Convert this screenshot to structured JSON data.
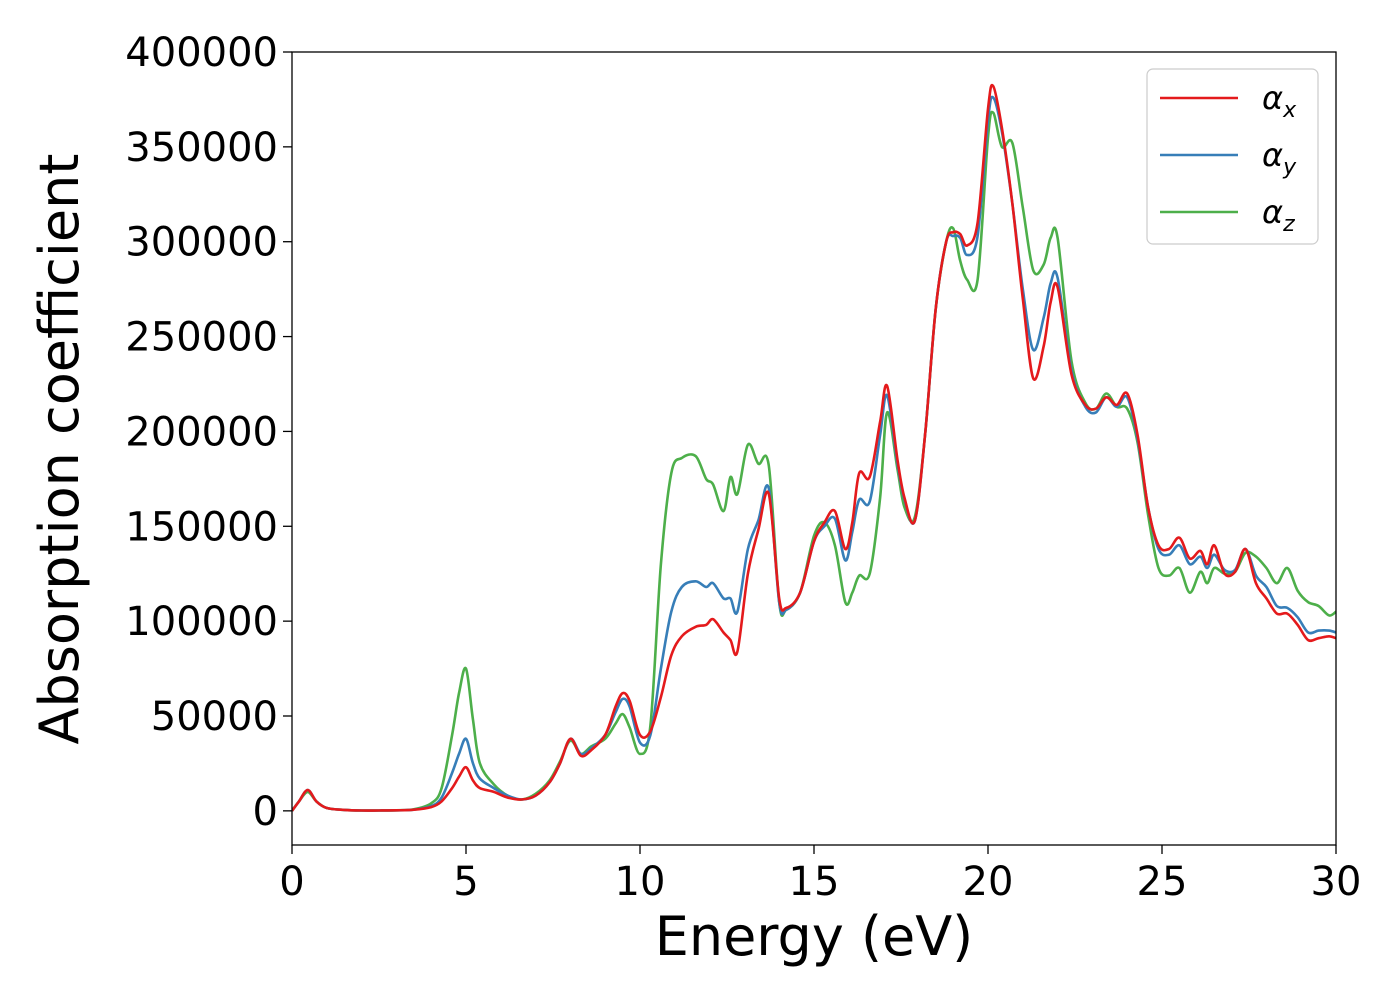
{
  "chart_data": {
    "type": "line",
    "xlabel": "Energy (eV)",
    "ylabel": "Absorption coefficient",
    "xlim": [
      0,
      30
    ],
    "ylim": [
      -18000,
      400000
    ],
    "xticks": [
      0,
      5,
      10,
      15,
      20,
      25,
      30
    ],
    "yticks": [
      0,
      50000,
      100000,
      150000,
      200000,
      250000,
      300000,
      350000,
      400000
    ],
    "grid": false,
    "legend_position": "top-right",
    "series": [
      {
        "name": "αx",
        "symbol": "α",
        "subscript": "x",
        "color": "#e41a1c",
        "x": [
          0,
          0.2,
          0.45,
          0.7,
          1,
          1.5,
          2,
          2.5,
          3,
          3.5,
          4,
          4.3,
          4.6,
          4.8,
          5,
          5.2,
          5.4,
          5.8,
          6.2,
          6.6,
          7,
          7.4,
          7.7,
          8,
          8.3,
          8.6,
          9,
          9.3,
          9.5,
          9.7,
          10,
          10.3,
          10.6,
          10.9,
          11.2,
          11.6,
          11.9,
          12.1,
          12.4,
          12.6,
          12.8,
          13.1,
          13.4,
          13.7,
          14,
          14.2,
          14.6,
          15,
          15.3,
          15.6,
          15.9,
          16.1,
          16.3,
          16.6,
          16.9,
          17.1,
          17.4,
          17.6,
          17.9,
          18.2,
          18.5,
          18.8,
          19,
          19.2,
          19.4,
          19.7,
          20,
          20.15,
          20.4,
          20.7,
          21,
          21.3,
          21.6,
          21.8,
          22,
          22.4,
          22.8,
          23.1,
          23.4,
          23.7,
          24,
          24.3,
          24.6,
          24.9,
          25.2,
          25.5,
          25.8,
          26.1,
          26.3,
          26.5,
          26.8,
          27.1,
          27.4,
          27.7,
          28,
          28.3,
          28.6,
          28.9,
          29.2,
          29.5,
          29.8,
          30
        ],
        "y": [
          0,
          5000,
          11000,
          5000,
          1500,
          500,
          200,
          200,
          300,
          600,
          2000,
          5000,
          12000,
          18000,
          23000,
          16000,
          12000,
          10000,
          7000,
          6000,
          8000,
          15000,
          25000,
          38000,
          29000,
          32000,
          40000,
          55000,
          62000,
          58000,
          40000,
          42000,
          60000,
          82000,
          92000,
          97000,
          98000,
          101000,
          94000,
          90000,
          84000,
          125000,
          148000,
          167000,
          112000,
          107000,
          115000,
          142000,
          152000,
          158000,
          138000,
          152000,
          178000,
          176000,
          205000,
          224000,
          185000,
          165000,
          153000,
          200000,
          265000,
          300000,
          305000,
          304000,
          298000,
          310000,
          370000,
          382000,
          360000,
          320000,
          270000,
          228000,
          245000,
          268000,
          276000,
          230000,
          214000,
          212000,
          218000,
          214000,
          220000,
          198000,
          160000,
          140000,
          138000,
          144000,
          133000,
          137000,
          130000,
          140000,
          125000,
          126000,
          138000,
          120000,
          112000,
          104000,
          104000,
          98000,
          90000,
          91000,
          92000,
          91000
        ]
      },
      {
        "name": "αy",
        "symbol": "α",
        "subscript": "y",
        "color": "#377eb8",
        "x": [
          0,
          0.2,
          0.45,
          0.7,
          1,
          1.5,
          2,
          2.5,
          3,
          3.5,
          4,
          4.3,
          4.6,
          4.8,
          5,
          5.2,
          5.4,
          5.8,
          6.2,
          6.6,
          7,
          7.4,
          7.7,
          8,
          8.3,
          8.6,
          9,
          9.3,
          9.5,
          9.7,
          10,
          10.3,
          10.6,
          10.9,
          11.2,
          11.6,
          11.9,
          12.1,
          12.4,
          12.6,
          12.8,
          13.1,
          13.4,
          13.7,
          14,
          14.2,
          14.6,
          15,
          15.3,
          15.6,
          15.9,
          16.1,
          16.3,
          16.6,
          16.9,
          17.1,
          17.4,
          17.6,
          17.9,
          18.2,
          18.5,
          18.8,
          19,
          19.2,
          19.4,
          19.7,
          20,
          20.15,
          20.4,
          20.7,
          21,
          21.3,
          21.6,
          21.8,
          22,
          22.4,
          22.8,
          23.1,
          23.4,
          23.7,
          24,
          24.3,
          24.6,
          24.9,
          25.2,
          25.5,
          25.8,
          26.1,
          26.3,
          26.5,
          26.8,
          27.1,
          27.4,
          27.7,
          28,
          28.3,
          28.6,
          28.9,
          29.2,
          29.5,
          29.8,
          30
        ],
        "y": [
          0,
          5000,
          11000,
          5000,
          1500,
          500,
          200,
          200,
          300,
          600,
          2500,
          7000,
          20000,
          30000,
          38000,
          25000,
          17000,
          12000,
          8000,
          6000,
          8000,
          15000,
          25000,
          38000,
          30000,
          33000,
          40000,
          52000,
          59000,
          55000,
          36000,
          40000,
          75000,
          105000,
          118000,
          121000,
          118000,
          120000,
          112000,
          112000,
          105000,
          138000,
          153000,
          170000,
          110000,
          106000,
          115000,
          142000,
          150000,
          154000,
          132000,
          147000,
          164000,
          163000,
          198000,
          219000,
          183000,
          164000,
          153000,
          200000,
          265000,
          300000,
          303000,
          302000,
          293000,
          303000,
          364000,
          376000,
          358000,
          320000,
          275000,
          243000,
          260000,
          278000,
          281000,
          232000,
          213000,
          210000,
          218000,
          213000,
          218000,
          196000,
          160000,
          138000,
          135000,
          140000,
          130000,
          134000,
          128000,
          135000,
          127000,
          127000,
          138000,
          124000,
          118000,
          108000,
          107000,
          102000,
          94000,
          95000,
          95000,
          94000
        ]
      },
      {
        "name": "αz",
        "symbol": "α",
        "subscript": "z",
        "color": "#4daf4a",
        "x": [
          0,
          0.2,
          0.45,
          0.7,
          1,
          1.5,
          2,
          2.5,
          3,
          3.5,
          4,
          4.3,
          4.6,
          4.8,
          5,
          5.2,
          5.4,
          5.8,
          6.2,
          6.6,
          7,
          7.4,
          7.7,
          8,
          8.3,
          8.6,
          9,
          9.3,
          9.5,
          9.7,
          10,
          10.3,
          10.6,
          10.9,
          11.2,
          11.6,
          11.9,
          12.1,
          12.4,
          12.6,
          12.8,
          13.1,
          13.4,
          13.7,
          14,
          14.2,
          14.6,
          15,
          15.3,
          15.6,
          15.9,
          16.1,
          16.3,
          16.6,
          16.9,
          17.1,
          17.4,
          17.6,
          17.9,
          18.2,
          18.5,
          18.8,
          19,
          19.2,
          19.4,
          19.7,
          20,
          20.15,
          20.4,
          20.7,
          21,
          21.3,
          21.6,
          21.8,
          22,
          22.4,
          22.8,
          23.1,
          23.4,
          23.7,
          24,
          24.3,
          24.6,
          24.9,
          25.2,
          25.5,
          25.8,
          26.1,
          26.3,
          26.5,
          26.8,
          27.1,
          27.4,
          27.7,
          28,
          28.3,
          28.6,
          28.9,
          29.2,
          29.5,
          29.8,
          30
        ],
        "y": [
          0,
          5000,
          10000,
          5000,
          1500,
          500,
          200,
          200,
          300,
          800,
          4000,
          12000,
          40000,
          62000,
          75000,
          48000,
          25000,
          14000,
          8000,
          6000,
          9000,
          16000,
          26000,
          37000,
          30000,
          34000,
          38000,
          46000,
          51000,
          44000,
          30000,
          45000,
          130000,
          178000,
          186000,
          187000,
          175000,
          172000,
          158000,
          176000,
          167000,
          193000,
          183000,
          182000,
          110000,
          106000,
          115000,
          145000,
          152000,
          140000,
          110000,
          115000,
          124000,
          125000,
          165000,
          210000,
          180000,
          160000,
          155000,
          200000,
          265000,
          300000,
          307000,
          290000,
          280000,
          280000,
          355000,
          368000,
          350000,
          352000,
          318000,
          285000,
          288000,
          302000,
          302000,
          237000,
          215000,
          212000,
          220000,
          213000,
          212000,
          194000,
          156000,
          128000,
          124000,
          128000,
          115000,
          126000,
          120000,
          128000,
          125000,
          126000,
          136000,
          134000,
          128000,
          120000,
          128000,
          116000,
          110000,
          108000,
          103000,
          105000
        ]
      }
    ]
  }
}
